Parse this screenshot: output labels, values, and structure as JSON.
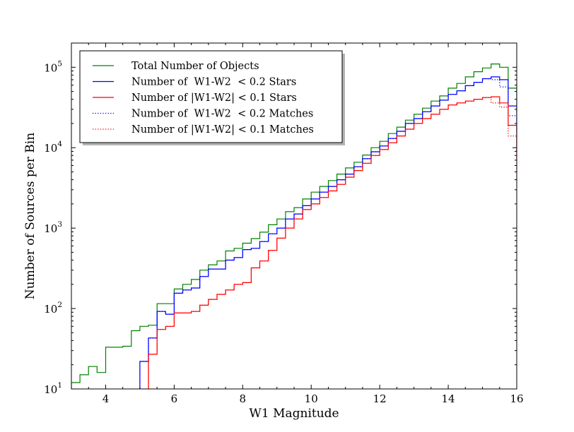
{
  "chart_data": {
    "type": "line",
    "subtype": "step-histogram",
    "xlabel": "W1 Magnitude",
    "ylabel": "Number of Sources per Bin",
    "xlim": [
      3,
      16
    ],
    "ylim": [
      10,
      200000
    ],
    "yscale": "log",
    "x_ticks": [
      "4",
      "6",
      "8",
      "10",
      "12",
      "14",
      "16"
    ],
    "y_ticks": [
      {
        "base": "10",
        "exp": "1"
      },
      {
        "base": "10",
        "exp": "2"
      },
      {
        "base": "10",
        "exp": "3"
      },
      {
        "base": "10",
        "exp": "4"
      },
      {
        "base": "10",
        "exp": "5"
      }
    ],
    "grid": false,
    "legend_position": "upper-left",
    "bin_edges": [
      3.0,
      3.25,
      3.5,
      3.75,
      4.0,
      4.25,
      4.5,
      4.75,
      5.0,
      5.25,
      5.5,
      5.75,
      6.0,
      6.25,
      6.5,
      6.75,
      7.0,
      7.25,
      7.5,
      7.75,
      8.0,
      8.25,
      8.5,
      8.75,
      9.0,
      9.25,
      9.5,
      9.75,
      10.0,
      10.25,
      10.5,
      10.75,
      11.0,
      11.25,
      11.5,
      11.75,
      12.0,
      12.25,
      12.5,
      12.75,
      13.0,
      13.25,
      13.5,
      13.75,
      14.0,
      14.25,
      14.5,
      14.75,
      15.0,
      15.25,
      15.5,
      15.75,
      16.0
    ],
    "series": [
      {
        "name": "Total Number of Objects",
        "color": "#008000",
        "dash": "solid",
        "values": [
          12,
          15,
          19,
          16,
          33,
          33,
          34,
          53,
          60,
          62,
          115,
          115,
          175,
          200,
          230,
          300,
          350,
          390,
          520,
          560,
          650,
          740,
          890,
          1100,
          1300,
          1600,
          1800,
          2300,
          2800,
          3300,
          3900,
          4700,
          5600,
          6600,
          8100,
          10000,
          12000,
          15000,
          18000,
          22000,
          26000,
          31000,
          38000,
          44000,
          55000,
          63000,
          76000,
          88000,
          98000,
          110000,
          100000,
          55000,
          28000
        ]
      },
      {
        "name": "Number of  W1-W2  < 0.2 Stars",
        "color": "#0000ff",
        "dash": "solid",
        "values": [
          null,
          null,
          null,
          null,
          null,
          null,
          null,
          null,
          22,
          43,
          92,
          85,
          155,
          170,
          180,
          250,
          310,
          310,
          400,
          430,
          540,
          560,
          680,
          850,
          1000,
          1300,
          1500,
          1900,
          2300,
          2800,
          3300,
          4000,
          4700,
          5800,
          7300,
          8900,
          10500,
          13000,
          16000,
          20000,
          23000,
          28000,
          33000,
          39000,
          46000,
          51000,
          59000,
          65000,
          72000,
          76000,
          70000,
          33000,
          16000
        ]
      },
      {
        "name": "Number of |W1-W2| < 0.1 Stars",
        "color": "#ff0000",
        "dash": "solid",
        "values": [
          null,
          null,
          null,
          null,
          null,
          null,
          null,
          null,
          null,
          27,
          55,
          60,
          88,
          88,
          92,
          110,
          130,
          150,
          170,
          200,
          210,
          320,
          390,
          530,
          750,
          1000,
          1300,
          1700,
          2000,
          2400,
          2900,
          3500,
          4300,
          5200,
          6400,
          8000,
          9500,
          11500,
          14000,
          17000,
          20000,
          23000,
          26000,
          30000,
          34000,
          36000,
          38000,
          40000,
          42000,
          43000,
          36000,
          19000,
          7500
        ]
      },
      {
        "name": "Number of  W1-W2  < 0.2 Matches",
        "color": "#0000ff",
        "dash": "dotted",
        "values": [
          null,
          null,
          null,
          null,
          null,
          null,
          null,
          null,
          22,
          43,
          92,
          85,
          155,
          170,
          180,
          250,
          310,
          310,
          400,
          430,
          540,
          560,
          680,
          850,
          1000,
          1300,
          1500,
          1900,
          2300,
          2800,
          3300,
          4000,
          4700,
          5800,
          7300,
          8900,
          10500,
          13000,
          16000,
          20000,
          23000,
          28000,
          33000,
          39000,
          46000,
          51000,
          59000,
          65000,
          72000,
          70000,
          57000,
          25000,
          9000
        ]
      },
      {
        "name": "Number of |W1-W2| < 0.1 Matches",
        "color": "#ff0000",
        "dash": "dotted",
        "values": [
          null,
          null,
          null,
          null,
          null,
          null,
          null,
          null,
          null,
          27,
          55,
          60,
          88,
          88,
          92,
          110,
          130,
          150,
          170,
          200,
          210,
          320,
          390,
          530,
          750,
          1000,
          1300,
          1700,
          2000,
          2400,
          2900,
          3500,
          4300,
          5200,
          6400,
          8000,
          9500,
          11500,
          14000,
          17000,
          20000,
          23000,
          26000,
          30000,
          34000,
          36000,
          38000,
          40000,
          42000,
          36000,
          32000,
          14000,
          3700
        ]
      }
    ]
  }
}
